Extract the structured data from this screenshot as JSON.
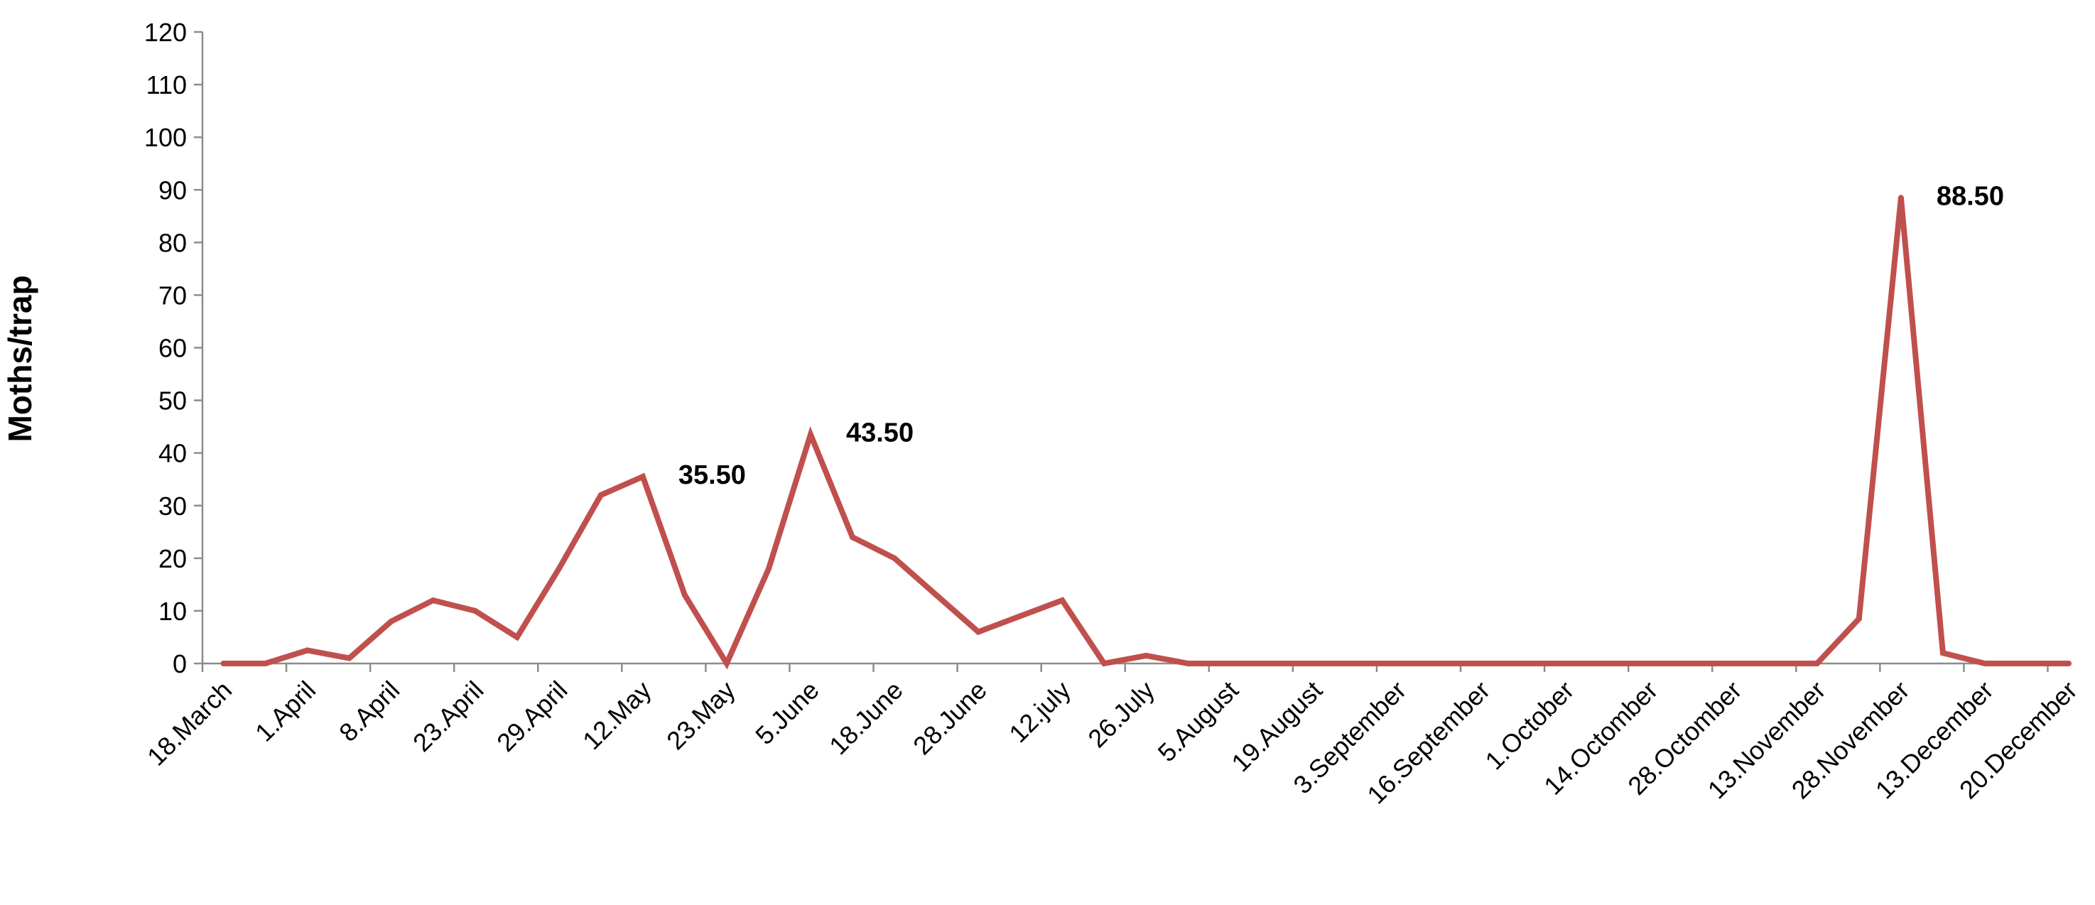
{
  "chart_data": {
    "type": "line",
    "title": "",
    "xlabel": "",
    "ylabel": "Moths/trap",
    "ylim": [
      0,
      120
    ],
    "yticks": [
      0,
      10,
      20,
      30,
      40,
      50,
      60,
      70,
      80,
      90,
      100,
      110,
      120
    ],
    "grid": false,
    "legend": "none",
    "line_color": "#c0504d",
    "x": [
      "18.March",
      "",
      "1.April",
      "",
      "8.April",
      "",
      "23.April",
      "",
      "29.April",
      "",
      "12.May",
      "",
      "23.May",
      "",
      "5.June",
      "",
      "18.June",
      "",
      "28.June",
      "",
      "12.july",
      "",
      "26.July",
      "",
      "5.August",
      "",
      "19.August",
      "",
      "3.September",
      "",
      "16.September",
      "",
      "1.October",
      "",
      "14.Octomber",
      "",
      "28.Octomber",
      "",
      "13.November",
      "",
      "28.November",
      "",
      "13.December",
      "",
      "20.December"
    ],
    "series": [
      {
        "values": [
          0,
          0,
          2.5,
          1,
          8,
          12,
          10,
          5,
          18,
          32,
          35.5,
          13,
          0,
          18,
          43.5,
          24,
          20,
          13,
          6,
          9,
          12,
          0,
          1.5,
          0,
          0,
          0,
          0,
          0,
          0,
          0,
          0,
          0,
          0,
          0,
          0,
          0,
          0,
          0,
          0,
          8.5,
          88.5,
          2,
          0,
          0,
          0
        ]
      }
    ],
    "annotations": [
      {
        "index": 10,
        "text": "35.50"
      },
      {
        "index": 14,
        "text": "43.50"
      },
      {
        "index": 40,
        "text": "88.50"
      }
    ]
  }
}
